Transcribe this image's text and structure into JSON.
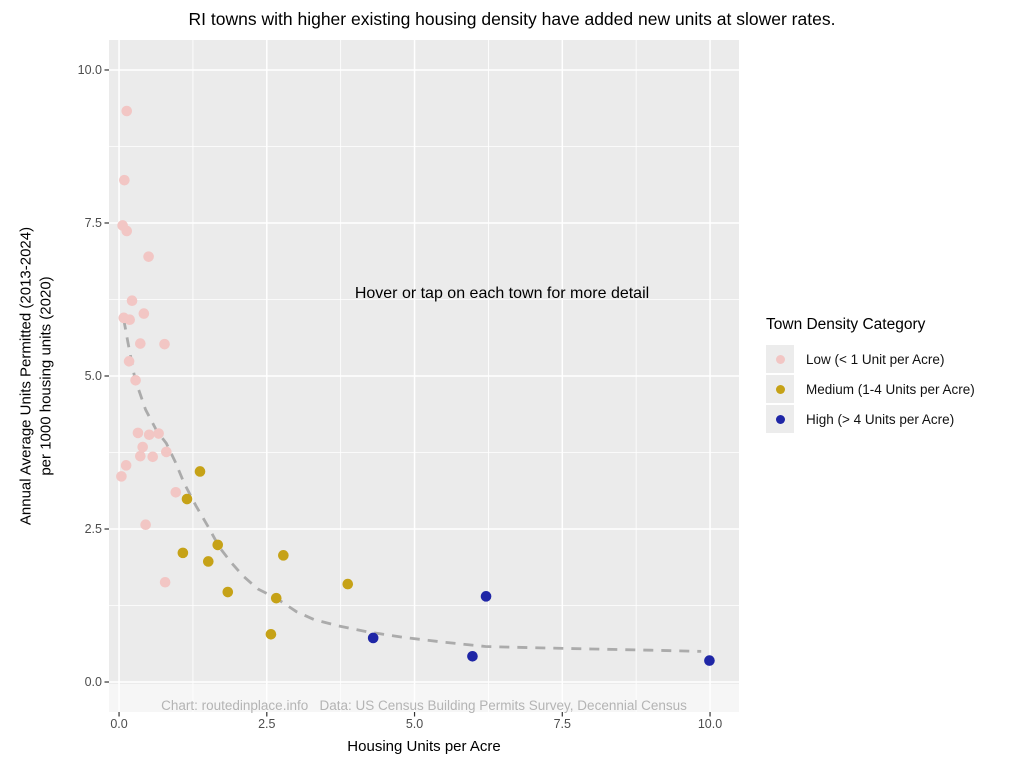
{
  "title": "RI towns with higher existing housing density have added new units at slower rates.",
  "annotation": "Hover or tap on each town for more detail",
  "caption": "Chart: routedinplace.info   Data: US Census Building Permits Survey, Decennial Census",
  "x_axis": {
    "label": "Housing Units per Acre"
  },
  "y_axis": {
    "label": "Annual Average Units Permitted (2013-2024)\nper 1000 housing units (2020)"
  },
  "legend": {
    "title": "Town Density Category",
    "items": [
      {
        "label": "Low (< 1 Unit per Acre)",
        "color": "#F2C6C4"
      },
      {
        "label": "Medium (1-4 Units per Acre)",
        "color": "#C6A217"
      },
      {
        "label": "High (> 4 Units per Acre)",
        "color": "#1F26A6"
      }
    ]
  },
  "chart_data": {
    "type": "scatter",
    "title": "RI towns with higher existing housing density have added new units at slower rates.",
    "xlabel": "Housing Units per Acre",
    "ylabel": "Annual Average Units Permitted (2013-2024) per 1000 housing units (2020)",
    "xlim": [
      -0.17,
      10.49
    ],
    "ylim": [
      -0.49,
      10.49
    ],
    "x_ticks": [
      0,
      2.5,
      5,
      7.5,
      10
    ],
    "y_ticks": [
      0,
      2.5,
      5,
      7.5,
      10
    ],
    "x_minor": [
      1.25,
      3.75,
      6.25,
      8.75
    ],
    "y_minor": [
      1.25,
      3.75,
      6.25,
      8.75
    ],
    "panel_bg": "#EBEBEB",
    "grid_color": "#FFFFFF",
    "point_radius": 5.3,
    "legend_position": "right",
    "series": [
      {
        "name": "Low (< 1 Unit per Acre)",
        "color": "#F2C6C4",
        "points": [
          [
            0.13,
            9.33
          ],
          [
            0.09,
            8.2
          ],
          [
            0.06,
            7.46
          ],
          [
            0.13,
            7.37
          ],
          [
            0.5,
            6.95
          ],
          [
            0.22,
            6.23
          ],
          [
            0.42,
            6.02
          ],
          [
            0.08,
            5.95
          ],
          [
            0.18,
            5.92
          ],
          [
            0.36,
            5.53
          ],
          [
            0.77,
            5.52
          ],
          [
            0.17,
            5.24
          ],
          [
            0.28,
            4.93
          ],
          [
            0.32,
            4.07
          ],
          [
            0.51,
            4.04
          ],
          [
            0.67,
            4.06
          ],
          [
            0.4,
            3.84
          ],
          [
            0.36,
            3.69
          ],
          [
            0.57,
            3.68
          ],
          [
            0.8,
            3.76
          ],
          [
            0.12,
            3.54
          ],
          [
            0.04,
            3.36
          ],
          [
            0.96,
            3.1
          ],
          [
            0.45,
            2.57
          ],
          [
            0.78,
            1.63
          ]
        ]
      },
      {
        "name": "Medium (1-4 Units per Acre)",
        "color": "#C6A217",
        "points": [
          [
            1.37,
            3.44
          ],
          [
            1.15,
            2.99
          ],
          [
            1.08,
            2.11
          ],
          [
            1.67,
            2.24
          ],
          [
            1.51,
            1.97
          ],
          [
            1.84,
            1.47
          ],
          [
            2.66,
            1.37
          ],
          [
            2.78,
            2.07
          ],
          [
            2.57,
            0.78
          ],
          [
            3.87,
            1.6
          ]
        ]
      },
      {
        "name": "High (> 4 Units per Acre)",
        "color": "#1F26A6",
        "points": [
          [
            4.3,
            0.72
          ],
          [
            5.98,
            0.42
          ],
          [
            6.21,
            1.4
          ],
          [
            9.99,
            0.35
          ]
        ]
      }
    ],
    "trend": {
      "style": "dashed",
      "color": "#ABABAB",
      "points": [
        [
          0.08,
          5.92
        ],
        [
          0.15,
          5.55
        ],
        [
          0.27,
          4.95
        ],
        [
          0.45,
          4.45
        ],
        [
          0.64,
          4.1
        ],
        [
          0.8,
          3.9
        ],
        [
          0.95,
          3.6
        ],
        [
          1.1,
          3.25
        ],
        [
          1.3,
          2.88
        ],
        [
          1.5,
          2.55
        ],
        [
          1.7,
          2.2
        ],
        [
          1.9,
          1.95
        ],
        [
          2.1,
          1.73
        ],
        [
          2.35,
          1.52
        ],
        [
          2.66,
          1.37
        ],
        [
          3.0,
          1.15
        ],
        [
          3.3,
          1.02
        ],
        [
          3.7,
          0.92
        ],
        [
          4.2,
          0.82
        ],
        [
          4.8,
          0.73
        ],
        [
          5.5,
          0.65
        ],
        [
          6.2,
          0.58
        ],
        [
          7.0,
          0.56
        ],
        [
          8.0,
          0.54
        ],
        [
          9.0,
          0.52
        ],
        [
          9.85,
          0.5
        ]
      ]
    }
  }
}
